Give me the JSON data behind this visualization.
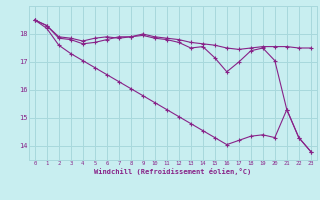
{
  "xlabel": "Windchill (Refroidissement éolien,°C)",
  "background_color": "#c8eef0",
  "grid_color": "#a8d8dc",
  "line_color": "#882288",
  "xlim": [
    -0.5,
    23.5
  ],
  "ylim": [
    13.5,
    19.0
  ],
  "yticks": [
    14,
    15,
    16,
    17,
    18
  ],
  "xticks": [
    0,
    1,
    2,
    3,
    4,
    5,
    6,
    7,
    8,
    9,
    10,
    11,
    12,
    13,
    14,
    15,
    16,
    17,
    18,
    19,
    20,
    21,
    22,
    23
  ],
  "line1_x": [
    0,
    1,
    2,
    3,
    4,
    5,
    6,
    7,
    8,
    9,
    10,
    11,
    12,
    13,
    14,
    15,
    16,
    17,
    18,
    19,
    20,
    21,
    22,
    23
  ],
  "line1_y": [
    18.5,
    18.3,
    17.9,
    17.85,
    17.75,
    17.85,
    17.9,
    17.85,
    17.9,
    18.0,
    17.9,
    17.85,
    17.8,
    17.7,
    17.65,
    17.6,
    17.5,
    17.45,
    17.5,
    17.55,
    17.55,
    17.55,
    17.5,
    17.5
  ],
  "line2_x": [
    0,
    1,
    2,
    3,
    4,
    5,
    6,
    7,
    8,
    9,
    10,
    11,
    12,
    13,
    14,
    15,
    16,
    17,
    18,
    19,
    20,
    21,
    22,
    23
  ],
  "line2_y": [
    18.5,
    18.3,
    17.85,
    17.8,
    17.65,
    17.7,
    17.8,
    17.9,
    17.9,
    17.95,
    17.85,
    17.8,
    17.7,
    17.5,
    17.55,
    17.15,
    16.65,
    17.0,
    17.4,
    17.5,
    17.05,
    15.3,
    14.3,
    13.8
  ],
  "line3_x": [
    0,
    1,
    2,
    3,
    4,
    5,
    6,
    7,
    8,
    9,
    10,
    11,
    12,
    13,
    14,
    15,
    16,
    17,
    18,
    19,
    20,
    21,
    22,
    23
  ],
  "line3_y": [
    18.5,
    18.2,
    17.6,
    17.3,
    17.05,
    16.8,
    16.55,
    16.3,
    16.05,
    15.8,
    15.55,
    15.3,
    15.05,
    14.8,
    14.55,
    14.3,
    14.05,
    14.2,
    14.35,
    14.4,
    14.3,
    15.3,
    14.3,
    13.8
  ]
}
